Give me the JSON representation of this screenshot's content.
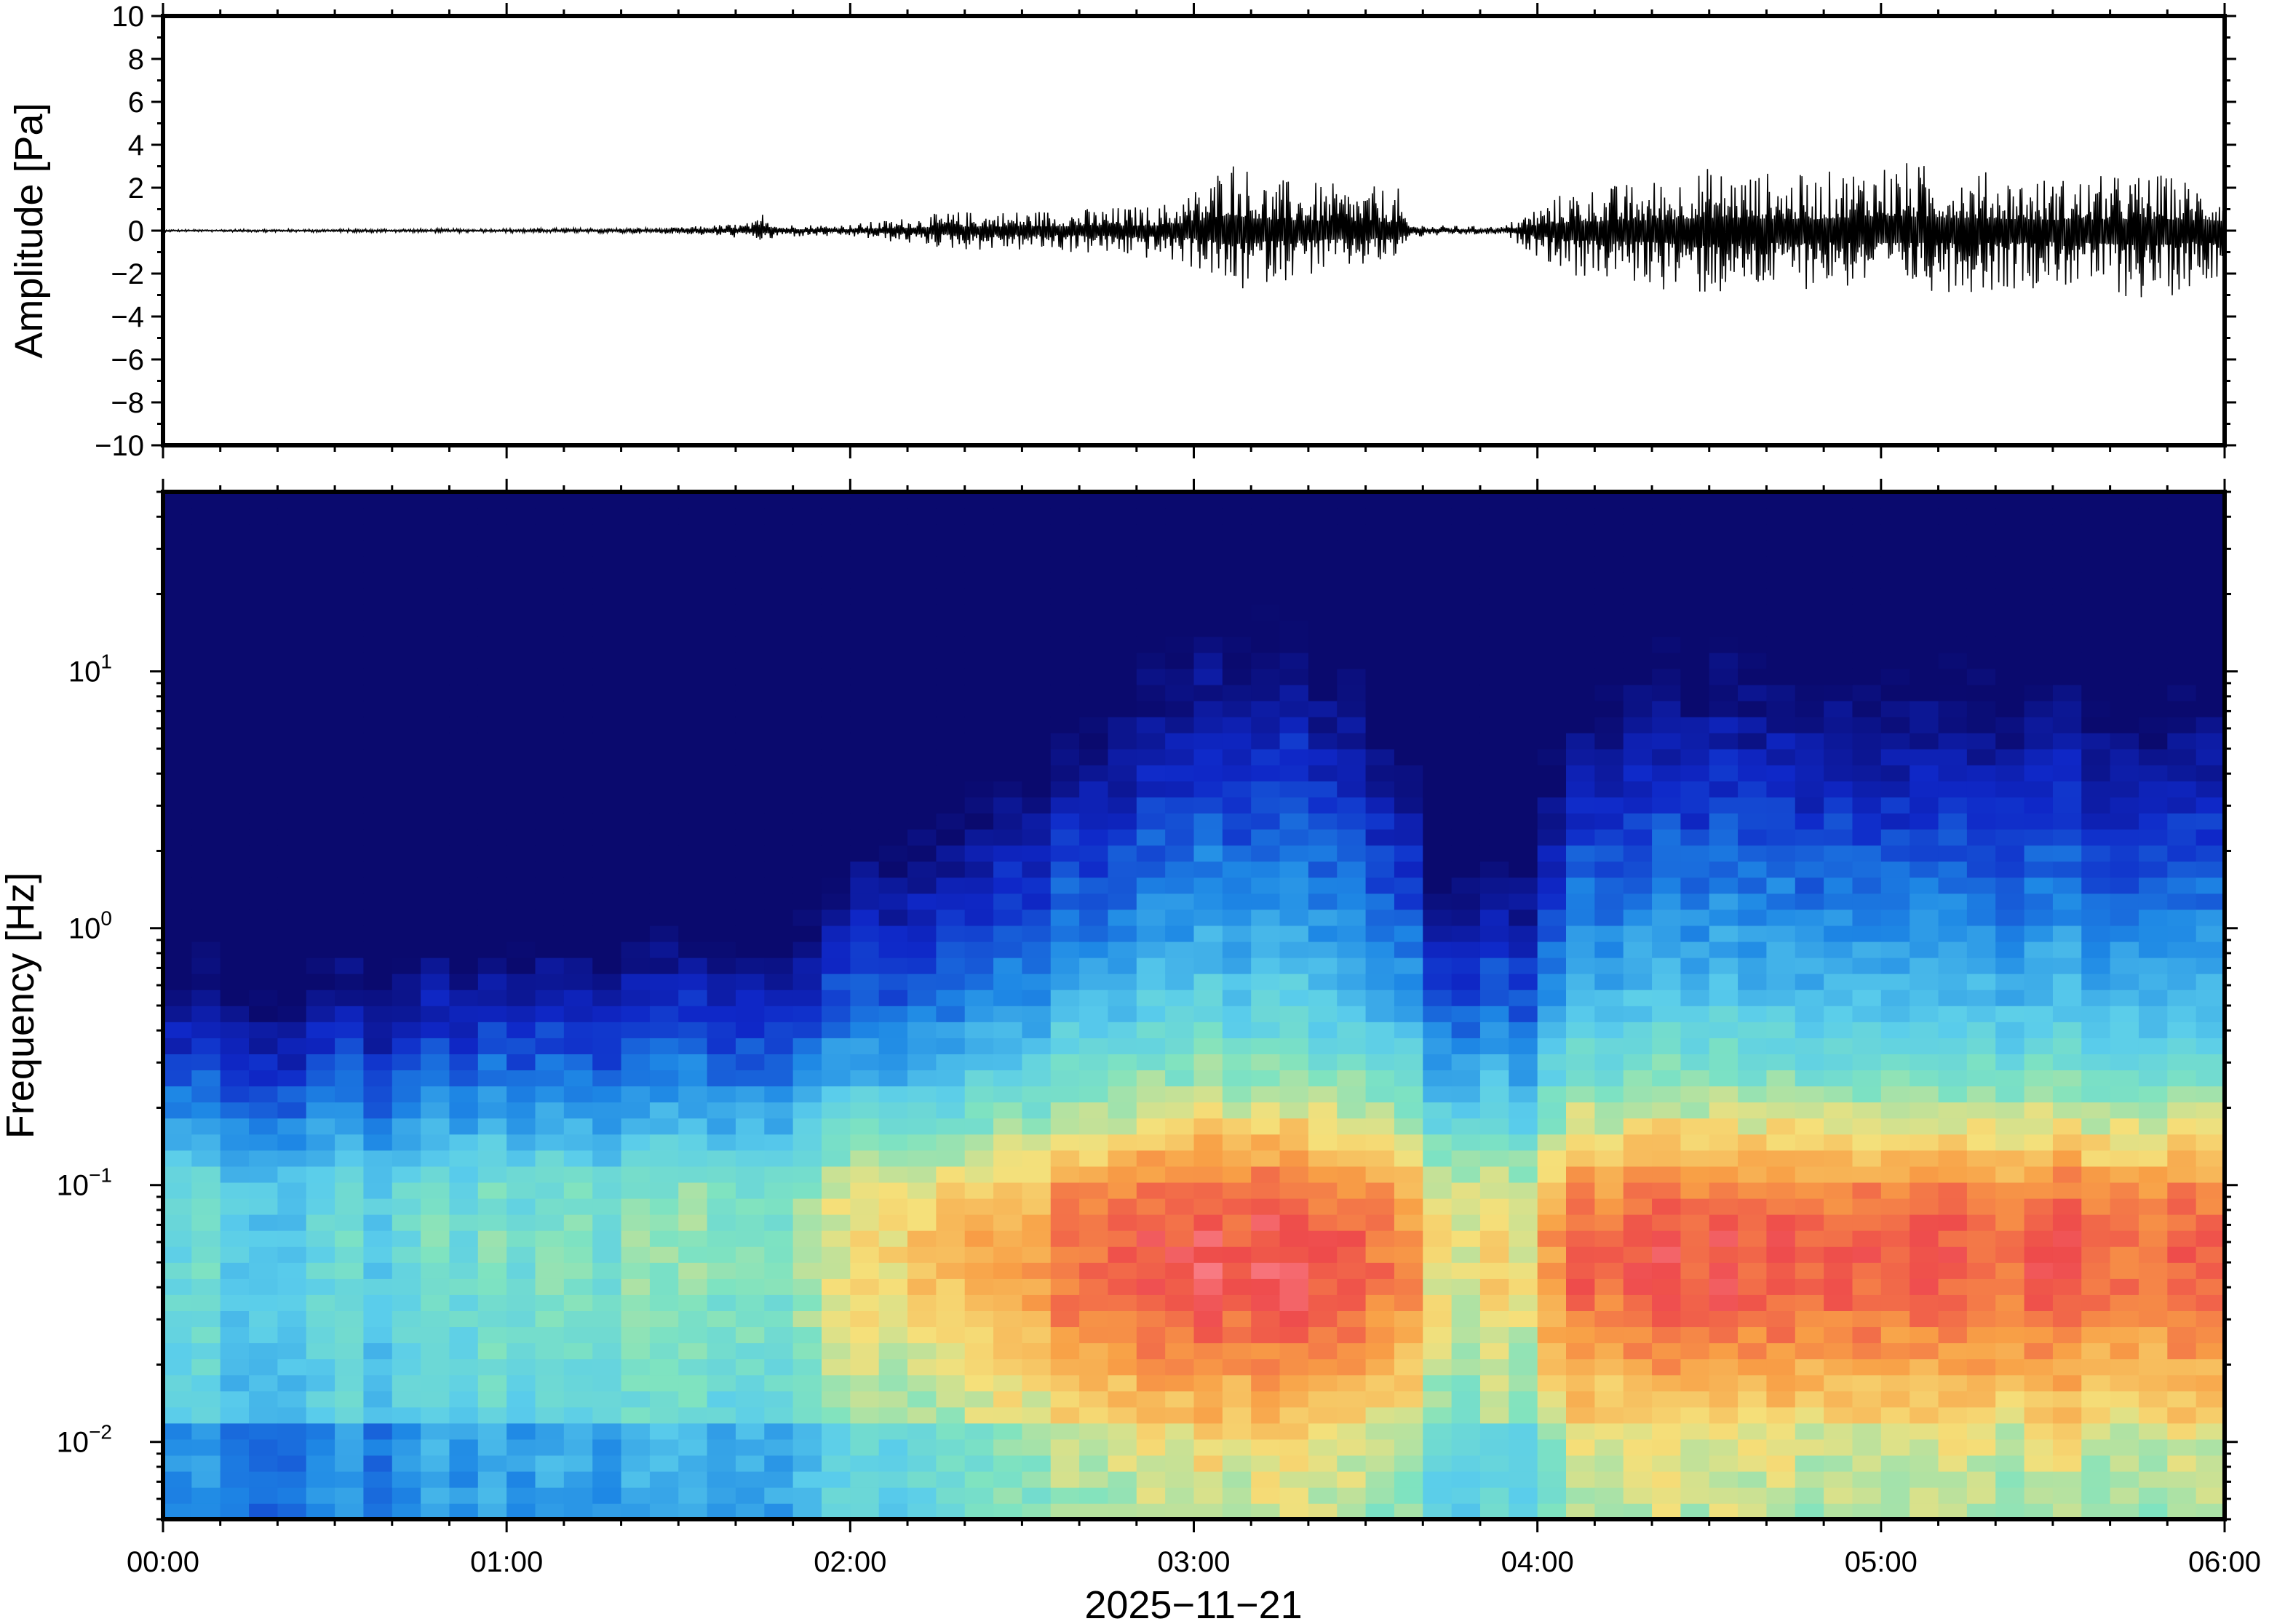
{
  "chart_data": [
    {
      "type": "line",
      "name": "waveform",
      "ylabel": "Amplitude [Pa]",
      "xlabel": "",
      "ylim": [
        -10,
        10
      ],
      "yticks": [
        "10",
        "8",
        "6",
        "4",
        "2",
        "0",
        "−2",
        "−4",
        "−6",
        "−8",
        "−10"
      ],
      "ytick_values": [
        10,
        8,
        6,
        4,
        2,
        0,
        -2,
        -4,
        -6,
        -8,
        -10
      ],
      "xlim": [
        "00:00",
        "06:00"
      ],
      "grid": false,
      "envelope": {
        "x_hours": [
          0,
          0.5,
          1.0,
          1.5,
          1.72,
          1.75,
          1.8,
          2.0,
          2.1,
          2.3,
          2.6,
          2.9,
          3.0,
          3.05,
          3.1,
          3.2,
          3.4,
          3.6,
          3.62,
          3.7,
          3.9,
          4.0,
          4.1,
          4.3,
          4.5,
          4.8,
          5.0,
          5.3,
          5.5,
          5.8,
          6.0
        ],
        "upper": [
          0.05,
          0.08,
          0.1,
          0.15,
          0.4,
          1.0,
          0.3,
          0.3,
          0.5,
          0.9,
          1.0,
          1.2,
          2.0,
          2.5,
          3.8,
          2.5,
          2.2,
          2.0,
          0.4,
          0.25,
          0.2,
          1.2,
          2.0,
          2.3,
          3.0,
          2.6,
          3.4,
          2.8,
          2.5,
          2.7,
          2.2
        ],
        "lower": [
          -0.05,
          -0.08,
          -0.1,
          -0.15,
          -0.4,
          -0.6,
          -0.3,
          -0.3,
          -0.5,
          -0.9,
          -1.0,
          -1.4,
          -1.8,
          -2.2,
          -3.3,
          -2.5,
          -2.0,
          -1.6,
          -0.4,
          -0.25,
          -0.2,
          -1.2,
          -2.2,
          -2.6,
          -3.2,
          -2.7,
          -2.8,
          -2.9,
          -2.6,
          -3.4,
          -2.0
        ]
      }
    },
    {
      "type": "heatmap",
      "name": "spectrogram",
      "ylabel": "Frequency [Hz]",
      "xlabel": "2025−11−21",
      "yscale": "log",
      "ylim": [
        0.005,
        50
      ],
      "yticks": [
        {
          "base": "10",
          "exp": "1",
          "value": 10
        },
        {
          "base": "10",
          "exp": "0",
          "value": 1
        },
        {
          "base": "10",
          "exp": "−1",
          "value": 0.1
        },
        {
          "base": "10",
          "exp": "−2",
          "value": 0.01
        }
      ],
      "xticks": [
        "00:00",
        "01:00",
        "02:00",
        "03:00",
        "04:00",
        "05:00",
        "06:00"
      ],
      "xtick_hours": [
        0,
        1,
        2,
        3,
        4,
        5,
        6
      ],
      "colormap": "rainbow (navy → blue → cyan → yellow → orange → red → pink)",
      "colors": {
        "low": "#0a0a6e",
        "mid_low": "#1e88e5",
        "mid": "#7fe3c0",
        "mid_high": "#f5e07a",
        "high": "#ee4b4b",
        "peak": "#ff9aa8"
      },
      "activity_by_hour": {
        "x_hours": [
          0,
          0.5,
          1.0,
          1.5,
          1.7,
          1.8,
          1.9,
          2.0,
          2.2,
          2.5,
          2.8,
          3.0,
          3.3,
          3.6,
          3.7,
          3.95,
          4.0,
          4.2,
          4.5,
          5.0,
          5.5,
          6.0
        ],
        "level": [
          0.25,
          0.2,
          0.3,
          0.35,
          0.45,
          0.3,
          0.4,
          0.5,
          0.7,
          0.75,
          0.85,
          0.95,
          1.0,
          0.85,
          0.5,
          0.55,
          0.8,
          0.9,
          0.95,
          0.95,
          0.9,
          0.88
        ]
      }
    }
  ]
}
